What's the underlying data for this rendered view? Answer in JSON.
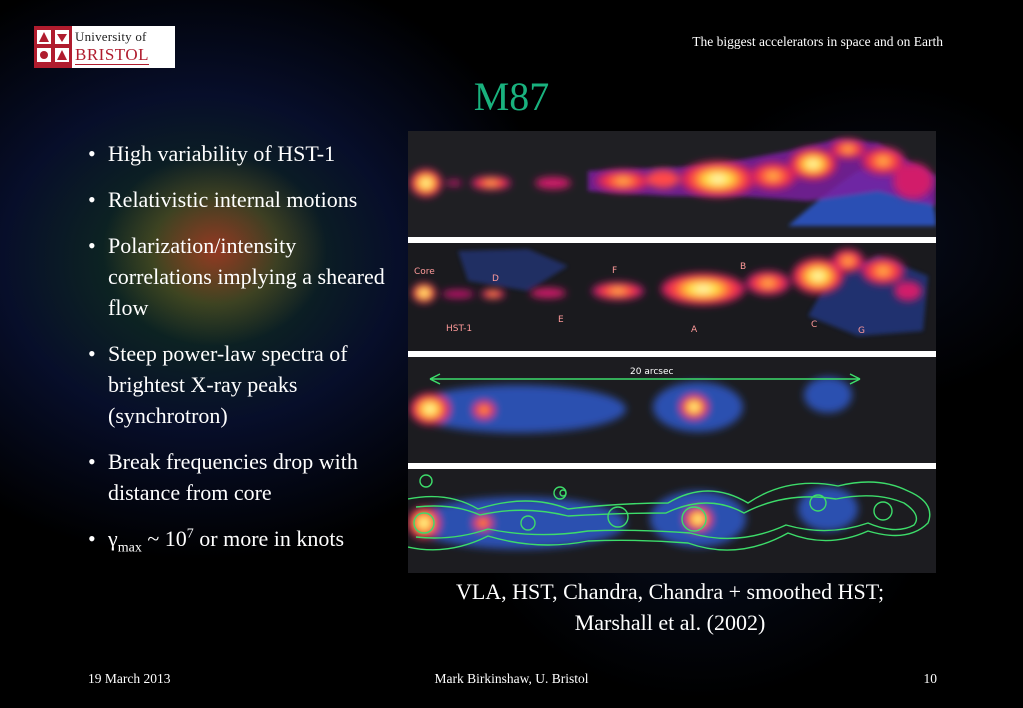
{
  "logo": {
    "line1": "University of",
    "line2": "BRISTOL"
  },
  "header": {
    "running_title": "The biggest accelerators in space and on Earth"
  },
  "slide": {
    "title": "M87",
    "bullets": [
      "High variability of HST-1",
      "Relativistic internal motions",
      "Polarization/intensity correlations implying a sheared flow",
      "Steep power-law spectra of brightest X-ray peaks (synchrotron)",
      "Break frequencies drop with distance from core"
    ],
    "gamma_bullet": {
      "symbol": "γ",
      "subscript": "max",
      "middle": " ~ 10",
      "superscript": "7",
      "tail": " or more in knots"
    }
  },
  "figure": {
    "panel_labels": {
      "core": "Core",
      "d": "D",
      "f": "F",
      "b": "B",
      "hst1": "HST-1",
      "e": "E",
      "a": "A",
      "c": "C",
      "g": "G"
    },
    "scale_label": "20 arcsec"
  },
  "caption": {
    "line1": "VLA, HST, Chandra, Chandra + smoothed HST;",
    "line2": "Marshall et al.  (2002)"
  },
  "footer": {
    "date": "19 March 2013",
    "author": "Mark Birkinshaw, U. Bristol",
    "page": "10"
  },
  "colors": {
    "title": "#19b27e",
    "bristol_red": "#b01c2e",
    "background": "#000000"
  }
}
